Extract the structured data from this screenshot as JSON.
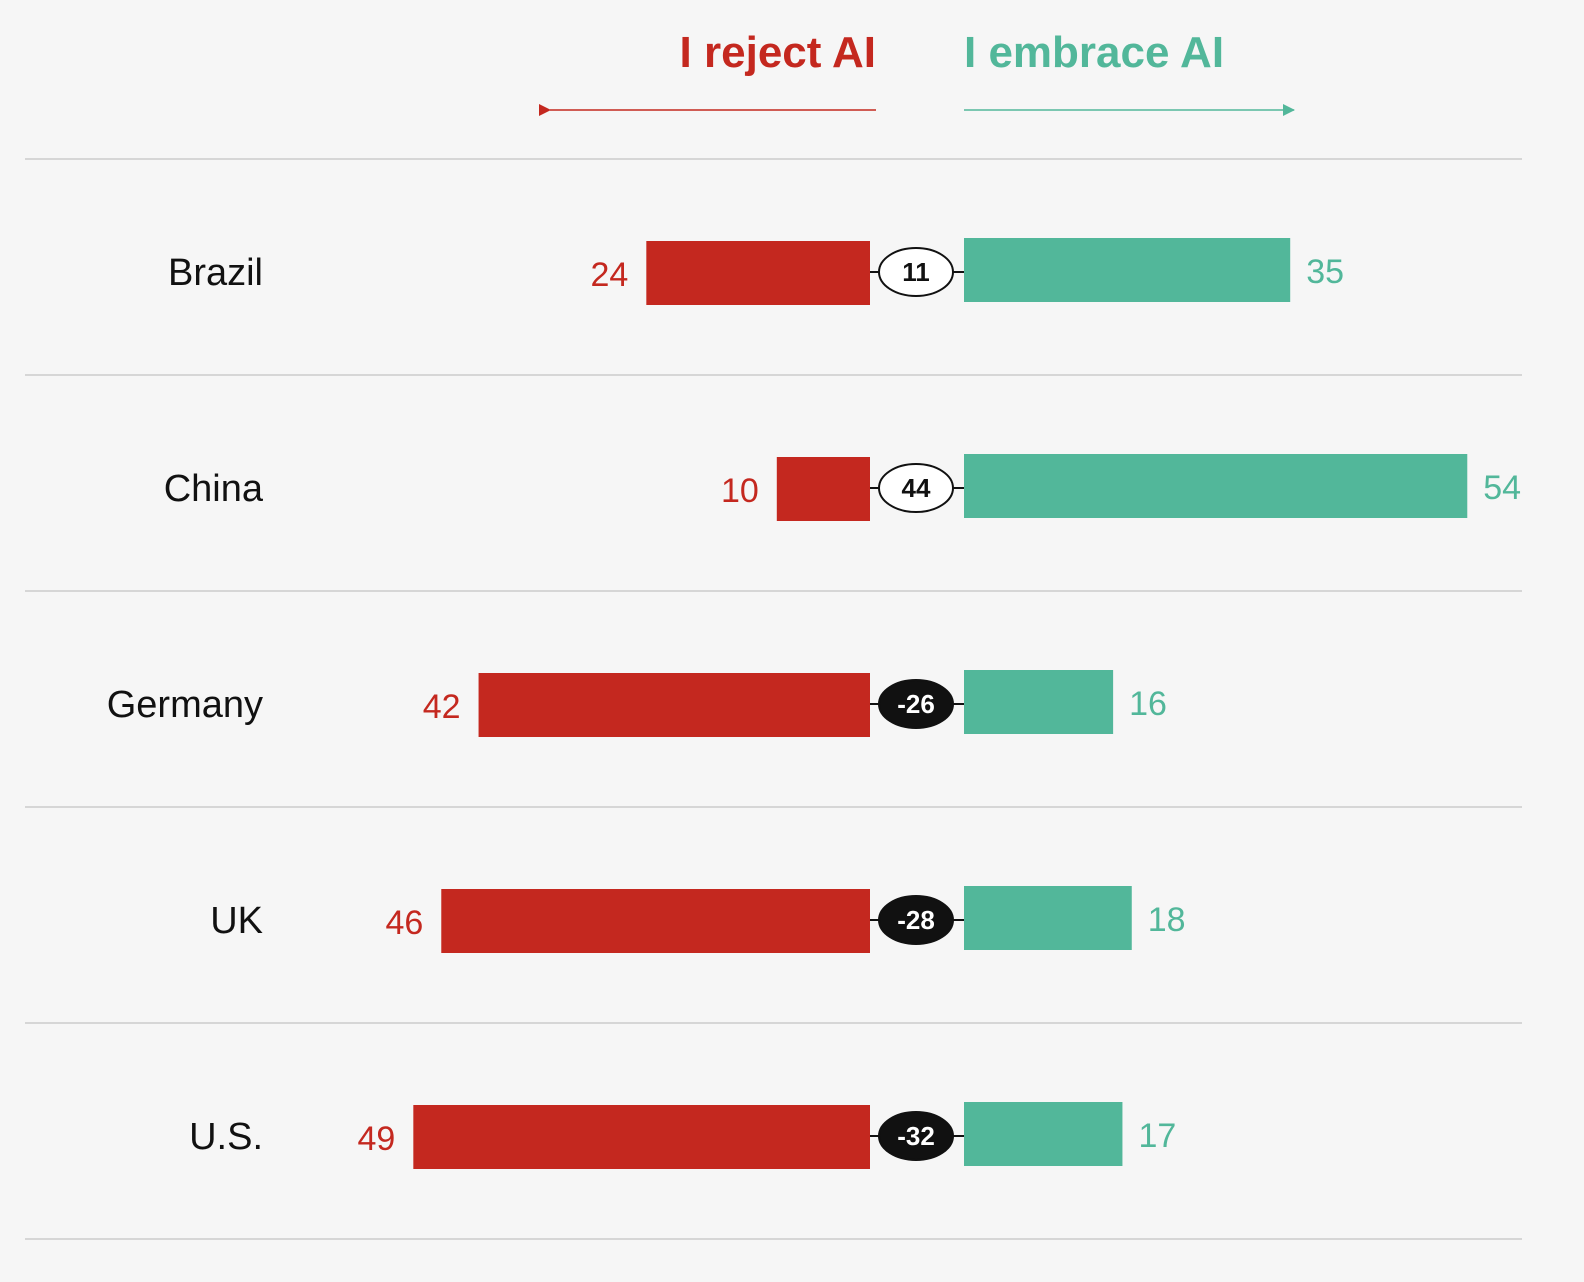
{
  "chart_data": {
    "type": "bar",
    "subtype": "diverging",
    "left_label": "I reject AI",
    "right_label": "I embrace AI",
    "categories": [
      "Brazil",
      "China",
      "Germany",
      "UK",
      "U.S."
    ],
    "series": [
      {
        "name": "I reject AI",
        "side": "left",
        "values": [
          24,
          10,
          42,
          46,
          49
        ]
      },
      {
        "name": "I embrace AI",
        "side": "right",
        "values": [
          35,
          54,
          16,
          18,
          17
        ]
      }
    ],
    "net": [
      11,
      44,
      -26,
      -28,
      -32
    ],
    "net_labels": [
      "11",
      "44",
      "-26",
      "-28",
      "-32"
    ],
    "colors": {
      "reject": "#c4281f",
      "embrace": "#52b79a",
      "net_positive_fill": "#ffffff",
      "net_negative_fill": "#111111",
      "background": "#f6f6f6",
      "rule": "#cccccc"
    }
  }
}
